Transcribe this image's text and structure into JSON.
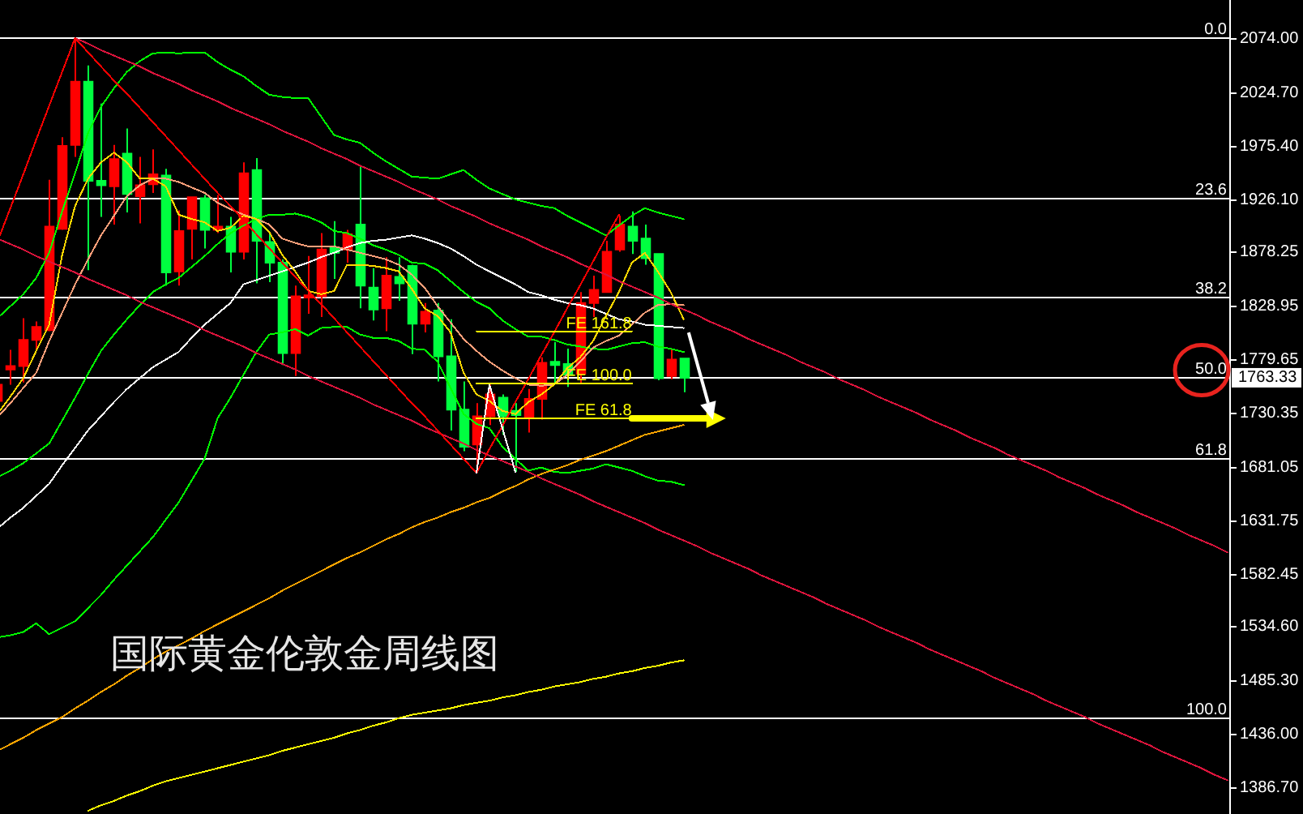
{
  "chart_data": {
    "type": "candlestick",
    "title": "国际黄金伦敦金周线图",
    "categories": [
      null,
      null,
      null,
      null,
      null,
      null,
      null,
      null,
      null,
      null,
      null,
      null,
      null,
      null,
      null,
      null,
      null,
      null,
      null,
      null,
      null,
      null,
      null,
      null,
      null,
      null,
      null,
      null,
      null,
      null,
      null,
      null,
      null,
      null,
      null,
      null,
      null,
      null,
      null,
      null,
      null,
      null,
      null,
      null,
      null,
      null,
      null,
      null,
      null,
      null,
      null,
      null,
      null,
      null,
      null,
      null,
      null,
      null,
      null,
      null,
      null,
      null,
      null,
      null,
      null,
      null,
      null,
      null,
      null,
      null,
      null,
      null,
      null,
      null,
      null,
      null,
      null,
      null,
      null,
      null,
      null,
      null,
      null,
      null,
      null,
      null,
      null,
      null,
      null,
      null,
      null,
      null,
      null,
      null,
      null,
      null
    ],
    "ohlc": [
      [
        1742,
        1757,
        1742,
        1757
      ],
      [
        1771,
        1789,
        1757,
        1774
      ],
      [
        1774,
        1818,
        1759,
        1798
      ],
      [
        1798,
        1815,
        1789,
        1810
      ],
      [
        1807,
        1945,
        1806,
        1902
      ],
      [
        1900,
        1984,
        1899,
        1976
      ],
      [
        1977,
        2075,
        1966,
        2035
      ],
      [
        2035,
        2050,
        1862,
        1944
      ],
      [
        1944,
        2015,
        1911,
        1940
      ],
      [
        1939,
        1977,
        1904,
        1964
      ],
      [
        1969,
        1992,
        1915,
        1932
      ],
      [
        1930,
        1966,
        1905,
        1940
      ],
      [
        1941,
        1973,
        1933,
        1950
      ],
      [
        1949,
        1955,
        1848,
        1860
      ],
      [
        1861,
        1917,
        1848,
        1898
      ],
      [
        1900,
        1929,
        1872,
        1929
      ],
      [
        1928,
        1931,
        1882,
        1899
      ],
      [
        1899,
        1931,
        1896,
        1902
      ],
      [
        1902,
        1911,
        1860,
        1879
      ],
      [
        1879,
        1961,
        1872,
        1951
      ],
      [
        1954,
        1965,
        1850,
        1889
      ],
      [
        1888,
        1897,
        1851,
        1869
      ],
      [
        1869,
        1872,
        1775,
        1786
      ],
      [
        1786,
        1848,
        1765,
        1838
      ],
      [
        1837,
        1875,
        1822,
        1839
      ],
      [
        1838,
        1896,
        1819,
        1881
      ],
      [
        1883,
        1907,
        1854,
        1878
      ],
      [
        1881,
        1899,
        1869,
        1895
      ],
      [
        1904,
        1958,
        1827,
        1848
      ],
      [
        1846,
        1864,
        1816,
        1826
      ],
      [
        1827,
        1874,
        1806,
        1857
      ],
      [
        1856,
        1874,
        1834,
        1850
      ],
      [
        1866,
        1867,
        1785,
        1813
      ],
      [
        1813,
        1832,
        1805,
        1824
      ],
      [
        1825,
        1832,
        1760,
        1783
      ],
      [
        1783,
        1817,
        1715,
        1734
      ],
      [
        1734,
        1760,
        1696,
        1700
      ],
      [
        1702,
        1740,
        1676,
        1728
      ],
      [
        1728,
        1757,
        1720,
        1748
      ],
      [
        1745,
        1748,
        1711,
        1728
      ],
      [
        1733,
        1740,
        1677,
        1729
      ],
      [
        1726,
        1753,
        1713,
        1744
      ],
      [
        1744,
        1782,
        1725,
        1777
      ],
      [
        1778,
        1796,
        1758,
        1775
      ],
      [
        1776,
        1790,
        1755,
        1766
      ],
      [
        1767,
        1842,
        1758,
        1832
      ],
      [
        1832,
        1857,
        1819,
        1844
      ],
      [
        1842,
        1889,
        1842,
        1879
      ],
      [
        1881,
        1912,
        1879,
        1904
      ],
      [
        1902,
        1916,
        1877,
        1889
      ],
      [
        1891,
        1904,
        1867,
        1873
      ],
      [
        1877,
        1877,
        1761,
        1763
      ],
      [
        1765,
        1790,
        1762,
        1780
      ],
      [
        1781,
        1781,
        1750,
        1763.33
      ],
      null,
      null,
      null,
      null,
      null,
      null,
      null,
      null,
      null,
      null,
      null,
      null,
      null,
      null,
      null,
      null,
      null,
      null,
      null,
      null,
      null,
      null,
      null,
      null,
      null,
      null,
      null,
      null,
      null,
      null,
      null,
      null,
      null,
      null,
      null,
      null,
      null,
      null,
      null,
      null,
      null,
      null
    ],
    "colors": [
      "#ff0000",
      "#ff0000",
      "#ff0000",
      "#ff0000",
      "#ff0000",
      "#ff0000",
      "#ff0000",
      "#00ff40",
      "#00ff40",
      "#ff0000",
      "#00ff40",
      "#ff0000",
      "#ff0000",
      "#00ff40",
      "#ff0000",
      "#ff0000",
      "#00ff40",
      "#ff0000",
      "#00ff40",
      "#ff0000",
      "#00ff40",
      "#00ff40",
      "#00ff40",
      "#ff0000",
      "#ff0000",
      "#ff0000",
      "#00ff40",
      "#ff0000",
      "#00ff40",
      "#00ff40",
      "#ff0000",
      "#00ff40",
      "#00ff40",
      "#ff0000",
      "#00ff40",
      "#00ff40",
      "#00ff40",
      "#ff0000",
      "#ff0000",
      "#00ff40",
      "#00ff40",
      "#ff0000",
      "#ff0000",
      "#00ff40",
      "#00ff40",
      "#ff0000",
      "#ff0000",
      "#ff0000",
      "#ff0000",
      "#00ff40",
      "#00ff40",
      "#00ff40",
      "#ff0000",
      "#00ff40",
      null,
      null,
      null,
      null,
      null,
      null,
      null,
      null,
      null,
      null,
      null,
      null,
      null,
      null,
      null,
      null,
      null,
      null,
      null,
      null,
      null,
      null,
      null,
      null,
      null,
      null,
      null,
      null,
      null,
      null,
      null,
      null,
      null,
      null,
      null,
      null,
      null,
      null,
      null,
      null,
      null,
      null
    ],
    "series": [
      {
        "type": "line",
        "color": "#00ff00",
        "values": [
          1818,
          1829,
          1840,
          1855,
          1878,
          1916,
          1951,
          1988,
          2012,
          2029,
          2044,
          2054,
          2061,
          2062,
          2061,
          2062,
          2062,
          2053,
          2046,
          2040,
          2031,
          2023,
          2021,
          2020,
          2020,
          2003,
          1986,
          1982,
          1979,
          1970,
          1962,
          1955,
          1948,
          1947,
          1946,
          1950,
          1954,
          1945,
          1937,
          1932,
          1927,
          1924,
          1921,
          1919,
          1912,
          1906,
          1900,
          1894,
          1903,
          1912,
          1919,
          1915,
          1912,
          1909,
          null,
          null,
          null,
          null,
          null,
          null,
          null,
          null,
          null,
          null,
          null,
          null,
          null,
          null,
          null,
          null,
          null,
          null,
          null,
          null,
          null,
          null,
          null,
          null,
          null,
          null,
          null,
          null,
          null,
          null,
          null,
          null,
          null,
          null,
          null,
          null,
          null,
          null,
          null,
          null,
          null,
          null
        ]
      },
      {
        "type": "line",
        "color": "#00ff00",
        "values": [
          1672,
          1678,
          1685,
          1694,
          1703,
          1724,
          1745,
          1767,
          1788,
          1803,
          1817,
          1830,
          1842,
          1849,
          1855,
          1865,
          1875,
          1886,
          1896,
          1903,
          1909,
          1913,
          1913,
          1914,
          1911,
          1906,
          1898,
          1896,
          1891,
          1885,
          1881,
          1876,
          1869,
          1868,
          1862,
          1852,
          1842,
          1833,
          1827,
          1816,
          1808,
          1801,
          1801,
          1798,
          1794,
          1792,
          1790,
          1789,
          1792,
          1795,
          1796,
          1792,
          1790,
          1787,
          null,
          null,
          null,
          null,
          null,
          null,
          null,
          null,
          null,
          null,
          null,
          null,
          null,
          null,
          null,
          null,
          null,
          null,
          null,
          null,
          null,
          null,
          null,
          null,
          null,
          null,
          null,
          null,
          null,
          null,
          null,
          null,
          null,
          null,
          null,
          null,
          null,
          null,
          null,
          null,
          null,
          null
        ]
      },
      {
        "type": "line",
        "color": "#00ff00",
        "values": [
          1525,
          1527,
          1530,
          1538,
          1528,
          1534,
          1540,
          1552,
          1564,
          1578,
          1591,
          1604,
          1617,
          1633,
          1649,
          1669,
          1689,
          1726,
          1745,
          1766,
          1787,
          1803,
          1805,
          1808,
          1802,
          1809,
          1810,
          1810,
          1803,
          1800,
          1800,
          1797,
          1790,
          1789,
          1778,
          1754,
          1730,
          1721,
          1717,
          1700,
          1689,
          1678,
          1681,
          1677,
          1676,
          1678,
          1680,
          1684,
          1681,
          1678,
          1673,
          1669,
          1668,
          1665,
          null,
          null,
          null,
          null,
          null,
          null,
          null,
          null,
          null,
          null,
          null,
          null,
          null,
          null,
          null,
          null,
          null,
          null,
          null,
          null,
          null,
          null,
          null,
          null,
          null,
          null,
          null,
          null,
          null,
          null,
          null,
          null,
          null,
          null,
          null,
          null,
          null,
          null,
          null,
          null,
          null,
          null
        ]
      },
      {
        "type": "line",
        "color": "#ffffff",
        "values": [
          1625,
          1635,
          1644,
          1655,
          1666,
          1683,
          1699,
          1715,
          1728,
          1741,
          1753,
          1763,
          1773,
          1780,
          1787,
          1800,
          1812,
          1822,
          1832,
          1849,
          1853,
          1857,
          1861,
          1865,
          1869,
          1874,
          1878,
          1883,
          1887,
          1889,
          1890,
          1892,
          1894,
          1891,
          1887,
          1882,
          1875,
          1867,
          1861,
          1855,
          1849,
          1842,
          1839,
          1835,
          1832,
          1830,
          1827,
          1822,
          1817,
          1815,
          1812,
          1811,
          1810,
          1809,
          null,
          null,
          null,
          null,
          null,
          null,
          null,
          null,
          null,
          null,
          null,
          null,
          null,
          null,
          null,
          null,
          null,
          null,
          null,
          null,
          null,
          null,
          null,
          null,
          null,
          null,
          null,
          null,
          null,
          null,
          null,
          null,
          null,
          null,
          null,
          null,
          null,
          null,
          null,
          null,
          null,
          null
        ]
      },
      {
        "type": "line",
        "color": "#ffa07a",
        "values": [
          1727,
          1740,
          1754,
          1768,
          1797,
          1823,
          1849,
          1872,
          1894,
          1912,
          1930,
          1940,
          1946,
          1946,
          1943,
          1938,
          1933,
          1924,
          1918,
          1913,
          1909,
          1904,
          1891,
          1887,
          1884,
          1884,
          1884,
          1881,
          1878,
          1875,
          1872,
          1867,
          1858,
          1846,
          1829,
          1814,
          1799,
          1788,
          1778,
          1770,
          1763,
          1757,
          1756,
          1757,
          1766,
          1778,
          1791,
          1797,
          1802,
          1812,
          1823,
          1830,
          1831,
          1830,
          null,
          null,
          null,
          null,
          null,
          null,
          null,
          null,
          null,
          null,
          null,
          null,
          null,
          null,
          null,
          null,
          null,
          null,
          null,
          null,
          null,
          null,
          null,
          null,
          null,
          null,
          null,
          null,
          null,
          null,
          null,
          null,
          null,
          null,
          null,
          null,
          null,
          null,
          null,
          null,
          null,
          null
        ]
      },
      {
        "type": "line",
        "color": "#ffd700",
        "values": [
          1730,
          1746,
          1763,
          1788,
          1812,
          1876,
          1921,
          1946,
          1961,
          1970,
          1961,
          1946,
          1946,
          1939,
          1913,
          1909,
          1906,
          1898,
          1901,
          1912,
          1909,
          1897,
          1876,
          1861,
          1843,
          1840,
          1843,
          1867,
          1867,
          1866,
          1864,
          1861,
          1845,
          1827,
          1820,
          1805,
          1768,
          1748,
          1742,
          1733,
          1730,
          1741,
          1748,
          1757,
          1772,
          1782,
          1797,
          1820,
          1842,
          1869,
          1878,
          1861,
          1842,
          1817,
          null,
          null,
          null,
          null,
          null,
          null,
          null,
          null,
          null,
          null,
          null,
          null,
          null,
          null,
          null,
          null,
          null,
          null,
          null,
          null,
          null,
          null,
          null,
          null,
          null,
          null,
          null,
          null,
          null,
          null,
          null,
          null,
          null,
          null,
          null,
          null,
          null,
          null,
          null,
          null,
          null,
          null
        ]
      },
      {
        "type": "line",
        "color": "#ffa500",
        "values": [
          1421,
          1427,
          1433,
          1440,
          1446,
          1452,
          1460,
          1467,
          1475,
          1482,
          1490,
          1497,
          1505,
          1512,
          1518,
          1524,
          1531,
          1537,
          1543,
          1549,
          1555,
          1561,
          1568,
          1574,
          1580,
          1586,
          1592,
          1598,
          1603,
          1609,
          1615,
          1620,
          1626,
          1631,
          1635,
          1640,
          1644,
          1649,
          1653,
          1659,
          1664,
          1670,
          1675,
          1679,
          1683,
          1688,
          1692,
          1696,
          1701,
          1706,
          1711,
          1714,
          1717,
          1720,
          null,
          null,
          null,
          null,
          null,
          null,
          null,
          null,
          null,
          null,
          null,
          null,
          null,
          null,
          null,
          null,
          null,
          null,
          null,
          null,
          null,
          null,
          null,
          null,
          null,
          null,
          null,
          null,
          null,
          null,
          null,
          null,
          null,
          null,
          null,
          null,
          null,
          null,
          null,
          null,
          null,
          null
        ]
      },
      {
        "type": "line",
        "color": "#ffff00",
        "values": [
          null,
          null,
          null,
          null,
          null,
          null,
          null,
          1366,
          1371,
          1375,
          1380,
          1384,
          1389,
          1393,
          1396,
          1399,
          1402,
          1405,
          1408,
          1411,
          1414,
          1417,
          1421,
          1424,
          1427,
          1430,
          1433,
          1437,
          1440,
          1444,
          1447,
          1451,
          1454,
          1456,
          1458,
          1460,
          1463,
          1465,
          1467,
          1470,
          1472,
          1475,
          1477,
          1480,
          1482,
          1484,
          1487,
          1489,
          1492,
          1494,
          1497,
          1499,
          1502,
          1504,
          null,
          null,
          null,
          null,
          null,
          null,
          null,
          null,
          null,
          null,
          null,
          null,
          null,
          null,
          null,
          null,
          null,
          null,
          null,
          null,
          null,
          null,
          null,
          null,
          null,
          null,
          null,
          null,
          null,
          null,
          null,
          null,
          null,
          null,
          null,
          null,
          null,
          null,
          null,
          null,
          null,
          null
        ]
      },
      {
        "type": "line",
        "color": "#dc143c",
        "values": [
          null,
          null,
          null,
          null,
          null,
          null,
          2075,
          2070,
          2064,
          2059,
          2054,
          2049,
          2043,
          2038,
          2033,
          2027,
          2022,
          2017,
          2011,
          2006,
          2001,
          1996,
          1990,
          1985,
          1980,
          1974,
          1969,
          1964,
          1958,
          1953,
          1948,
          1943,
          1937,
          1932,
          1927,
          1921,
          1916,
          1911,
          1905,
          1900,
          1895,
          1890,
          1884,
          1879,
          1874,
          1868,
          1863,
          1858,
          1852,
          1847,
          1842,
          1837,
          1831,
          1826,
          1821,
          1815,
          1810,
          1805,
          1799,
          1794,
          1789,
          1784,
          1778,
          1773,
          1768,
          1762,
          1757,
          1752,
          1746,
          1741,
          1736,
          1731,
          1725,
          1720,
          1715,
          1709,
          1704,
          1699,
          1693,
          1688,
          1683,
          1678,
          1672,
          1667,
          1662,
          1656,
          1651,
          1646,
          1640,
          1635,
          1630,
          1625,
          1619,
          1614,
          1609,
          1603
        ]
      },
      {
        "type": "line",
        "color": "#dc143c",
        "values": [
          1891,
          1886,
          1881,
          1875,
          1870,
          1865,
          1860,
          1854,
          1849,
          1844,
          1839,
          1833,
          1828,
          1823,
          1818,
          1813,
          1807,
          1802,
          1797,
          1792,
          1786,
          1781,
          1776,
          1771,
          1765,
          1760,
          1755,
          1750,
          1745,
          1739,
          1734,
          1729,
          1724,
          1718,
          1713,
          1708,
          1703,
          1697,
          1692,
          1687,
          1682,
          1677,
          1671,
          1666,
          1661,
          1656,
          1650,
          1645,
          1640,
          1635,
          1630,
          1624,
          1619,
          1614,
          1609,
          1603,
          1598,
          1593,
          1588,
          1582,
          1577,
          1572,
          1567,
          1562,
          1556,
          1551,
          1546,
          1541,
          1535,
          1530,
          1525,
          1520,
          1514,
          1509,
          1504,
          1499,
          1494,
          1488,
          1483,
          1478,
          1473,
          1467,
          1462,
          1457,
          1452,
          1446,
          1441,
          1436,
          1431,
          1426,
          1420,
          1415,
          1410,
          1405,
          1399,
          1394
        ]
      },
      {
        "type": "line",
        "color": "#ff0000",
        "values": [
          1888,
          1919,
          1950,
          1982,
          2013,
          2044,
          2075,
          2062,
          2049,
          2036,
          2024,
          2011,
          1998,
          1985,
          1972,
          1959,
          1946,
          1933,
          1921,
          1908,
          1895,
          1882,
          1869,
          1856,
          1843,
          1831,
          1818,
          1805,
          1792,
          1779,
          1766,
          1753,
          1740,
          1728,
          1715,
          1702,
          1689,
          1676,
          1698,
          1719,
          1741,
          1762,
          1784,
          1805,
          1827,
          1848,
          1870,
          1892,
          1913,
          null,
          null,
          null,
          null,
          null,
          null,
          null,
          null,
          null,
          null,
          null,
          null,
          null,
          null,
          null,
          null,
          null,
          null,
          null,
          null,
          null,
          null,
          null,
          null,
          null,
          null,
          null,
          null,
          null,
          null,
          null,
          null,
          null,
          null,
          null,
          null,
          null,
          null,
          null,
          null,
          null,
          null,
          null,
          null,
          null,
          null,
          null
        ]
      },
      {
        "type": "line",
        "color": "#ffffff",
        "values": [
          null,
          null,
          null,
          null,
          null,
          null,
          null,
          null,
          null,
          null,
          null,
          null,
          null,
          null,
          null,
          null,
          null,
          null,
          null,
          null,
          null,
          null,
          null,
          null,
          null,
          null,
          null,
          null,
          null,
          null,
          null,
          null,
          null,
          null,
          null,
          null,
          null,
          1676,
          1757,
          1717,
          1677,
          null,
          null,
          null,
          null,
          null,
          null,
          null,
          null,
          null,
          null,
          null,
          null,
          null,
          null,
          null,
          null,
          null,
          null,
          null,
          null,
          null,
          null,
          null,
          null,
          null,
          null,
          null,
          null,
          null,
          null,
          null,
          null,
          null,
          null,
          null,
          null,
          null,
          null,
          null,
          null,
          null,
          null,
          null,
          null,
          null,
          null,
          null,
          null,
          null,
          null,
          null,
          null,
          null,
          null,
          null
        ]
      },
      {
        "type": "line",
        "name": "FE 161.8",
        "color": "#ffff00",
        "values": [
          null,
          null,
          null,
          null,
          null,
          null,
          null,
          null,
          null,
          null,
          null,
          null,
          null,
          null,
          null,
          null,
          null,
          null,
          null,
          null,
          null,
          null,
          null,
          null,
          null,
          null,
          null,
          null,
          null,
          null,
          null,
          null,
          null,
          null,
          null,
          null,
          null,
          1806,
          1806,
          1806,
          1806,
          1806,
          1806,
          1806,
          1806,
          1806,
          1806,
          1806,
          1806,
          1806,
          null,
          null,
          null,
          null,
          null,
          null,
          null,
          null,
          null,
          null,
          null,
          null,
          null,
          null,
          null,
          null,
          null,
          null,
          null,
          null,
          null,
          null,
          null,
          null,
          null,
          null,
          null,
          null,
          null,
          null,
          null,
          null,
          null,
          null,
          null,
          null,
          null,
          null,
          null,
          null,
          null,
          null,
          null,
          null,
          null,
          null
        ]
      },
      {
        "type": "line",
        "name": "FE 100.0",
        "color": "#ffff00",
        "values": [
          null,
          null,
          null,
          null,
          null,
          null,
          null,
          null,
          null,
          null,
          null,
          null,
          null,
          null,
          null,
          null,
          null,
          null,
          null,
          null,
          null,
          null,
          null,
          null,
          null,
          null,
          null,
          null,
          null,
          null,
          null,
          null,
          null,
          null,
          null,
          null,
          null,
          1758,
          1758,
          1758,
          1758,
          1758,
          1758,
          1758,
          1758,
          1758,
          1758,
          1758,
          1758,
          1758,
          null,
          null,
          null,
          null,
          null,
          null,
          null,
          null,
          null,
          null,
          null,
          null,
          null,
          null,
          null,
          null,
          null,
          null,
          null,
          null,
          null,
          null,
          null,
          null,
          null,
          null,
          null,
          null,
          null,
          null,
          null,
          null,
          null,
          null,
          null,
          null,
          null,
          null,
          null,
          null,
          null,
          null,
          null,
          null,
          null,
          null
        ]
      },
      {
        "type": "line",
        "name": "FE 61.8",
        "color": "#ffff00",
        "values": [
          null,
          null,
          null,
          null,
          null,
          null,
          null,
          null,
          null,
          null,
          null,
          null,
          null,
          null,
          null,
          null,
          null,
          null,
          null,
          null,
          null,
          null,
          null,
          null,
          null,
          null,
          null,
          null,
          null,
          null,
          null,
          null,
          null,
          null,
          null,
          null,
          null,
          1726,
          1726,
          1726,
          1726,
          1726,
          1726,
          1726,
          1726,
          1726,
          1726,
          1726,
          1726,
          1726,
          null,
          null,
          null,
          null,
          null,
          null,
          null,
          null,
          null,
          null,
          null,
          null,
          null,
          null,
          null,
          null,
          null,
          null,
          null,
          null,
          null,
          null,
          null,
          null,
          null,
          null,
          null,
          null,
          null,
          null,
          null,
          null,
          null,
          null,
          null,
          null,
          null,
          null,
          null,
          null,
          null,
          null,
          null,
          null,
          null,
          null
        ]
      }
    ],
    "ref_lines": [
      {
        "axis": "y",
        "value": 2075,
        "color": "#ffffff"
      },
      {
        "axis": "y",
        "value": 1928,
        "color": "#ffffff"
      },
      {
        "axis": "y",
        "value": 1837,
        "color": "#ffffff"
      },
      {
        "axis": "y",
        "value": 1763,
        "color": "#ffffff"
      },
      {
        "axis": "y",
        "value": 1689,
        "color": "#ffffff"
      },
      {
        "axis": "y",
        "value": 1451,
        "color": "#ffffff"
      }
    ],
    "annotations": [
      {
        "text": "0.0",
        "y": 2075
      },
      {
        "text": "23.6",
        "y": 1928
      },
      {
        "text": "38.2",
        "y": 1837
      },
      {
        "text": "50.0",
        "y": 1763
      },
      {
        "text": "61.8",
        "y": 1689
      },
      {
        "text": "100.0",
        "y": 1451
      },
      "1763.33"
    ],
    "ylim": [
      1363,
      2110
    ],
    "yticks": [
      {
        "value": 2074,
        "label": "2074.00"
      },
      {
        "value": 2024.7,
        "label": "2024.70"
      },
      {
        "value": 1975.4,
        "label": "1975.40"
      },
      {
        "value": 1926.1,
        "label": "1926.10"
      },
      {
        "value": 1878.25,
        "label": "1878.25"
      },
      {
        "value": 1828.95,
        "label": "1828.95"
      },
      {
        "value": 1779.65,
        "label": "1779.65"
      },
      {
        "value": 1730.35,
        "label": "1730.35"
      },
      {
        "value": 1681.05,
        "label": "1681.05"
      },
      {
        "value": 1631.75,
        "label": "1631.75"
      },
      {
        "value": 1582.45,
        "label": "1582.45"
      },
      {
        "value": 1534.6,
        "label": "1534.60"
      },
      {
        "value": 1485.3,
        "label": "1485.30"
      },
      {
        "value": 1436,
        "label": "1436.00"
      },
      {
        "value": 1386.7,
        "label": "1386.70"
      }
    ],
    "tick_labels": "y"
  }
}
